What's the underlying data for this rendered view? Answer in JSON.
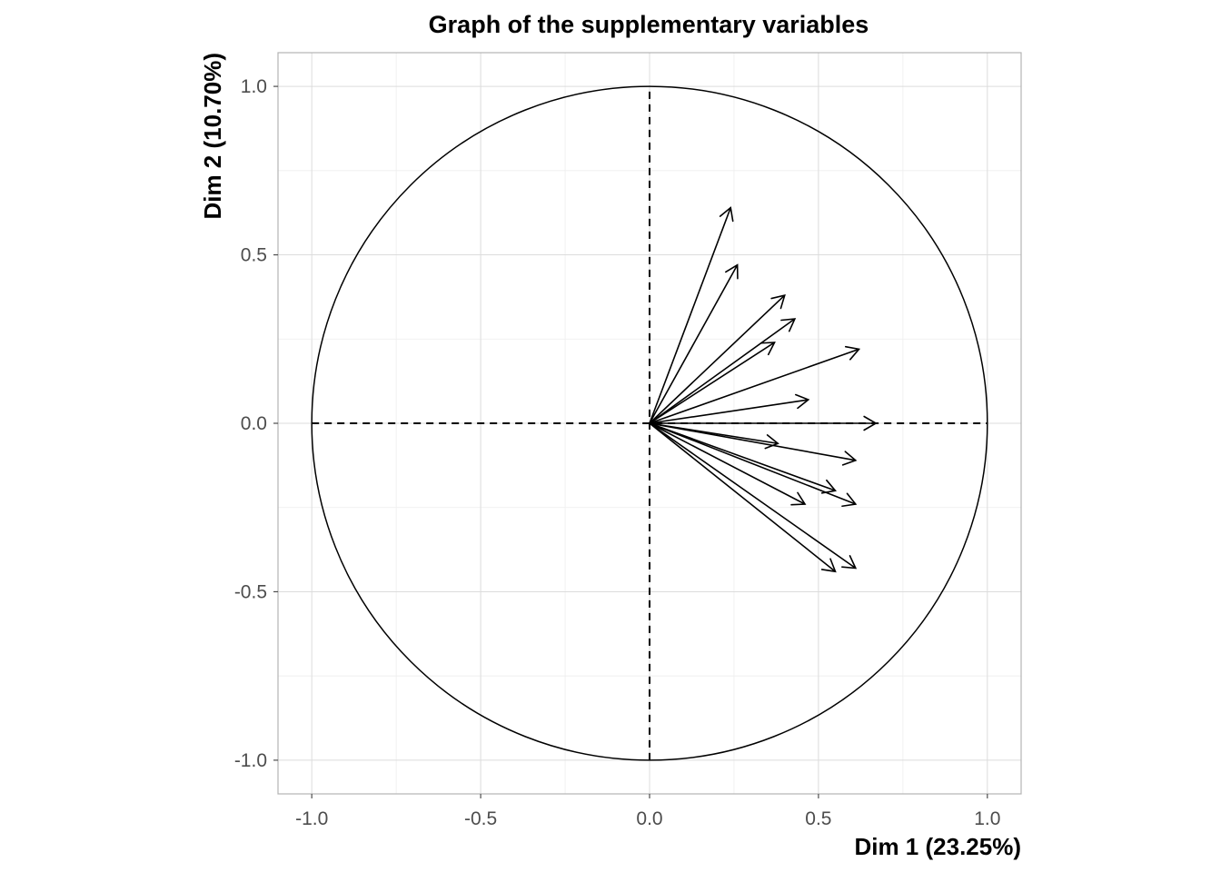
{
  "chart_data": {
    "type": "scatter",
    "title": "Graph of the supplementary variables",
    "xlabel": "Dim 1 (23.25%)",
    "ylabel": "Dim 2 (10.70%)",
    "xlim": [
      -1.1,
      1.1
    ],
    "ylim": [
      -1.1,
      1.1
    ],
    "x_ticks": [
      -1.0,
      -0.5,
      0.0,
      0.5,
      1.0
    ],
    "y_ticks": [
      -1.0,
      -0.5,
      0.0,
      0.5,
      1.0
    ],
    "x_tick_labels": [
      "-1.0",
      "-0.5",
      "0.0",
      "0.5",
      "1.0"
    ],
    "y_tick_labels": [
      "-1.0",
      "-0.5",
      "0.0",
      "0.5",
      "1.0"
    ],
    "grid": true,
    "correlation_circle": true,
    "vectors": [
      {
        "x": 0.24,
        "y": 0.64
      },
      {
        "x": 0.26,
        "y": 0.47
      },
      {
        "x": 0.4,
        "y": 0.38
      },
      {
        "x": 0.43,
        "y": 0.31
      },
      {
        "x": 0.37,
        "y": 0.24
      },
      {
        "x": 0.62,
        "y": 0.22
      },
      {
        "x": 0.47,
        "y": 0.07
      },
      {
        "x": 0.67,
        "y": 0.0
      },
      {
        "x": 0.38,
        "y": -0.06
      },
      {
        "x": 0.61,
        "y": -0.11
      },
      {
        "x": 0.55,
        "y": -0.2
      },
      {
        "x": 0.61,
        "y": -0.24
      },
      {
        "x": 0.46,
        "y": -0.24
      },
      {
        "x": 0.55,
        "y": -0.44
      },
      {
        "x": 0.61,
        "y": -0.43
      }
    ]
  }
}
